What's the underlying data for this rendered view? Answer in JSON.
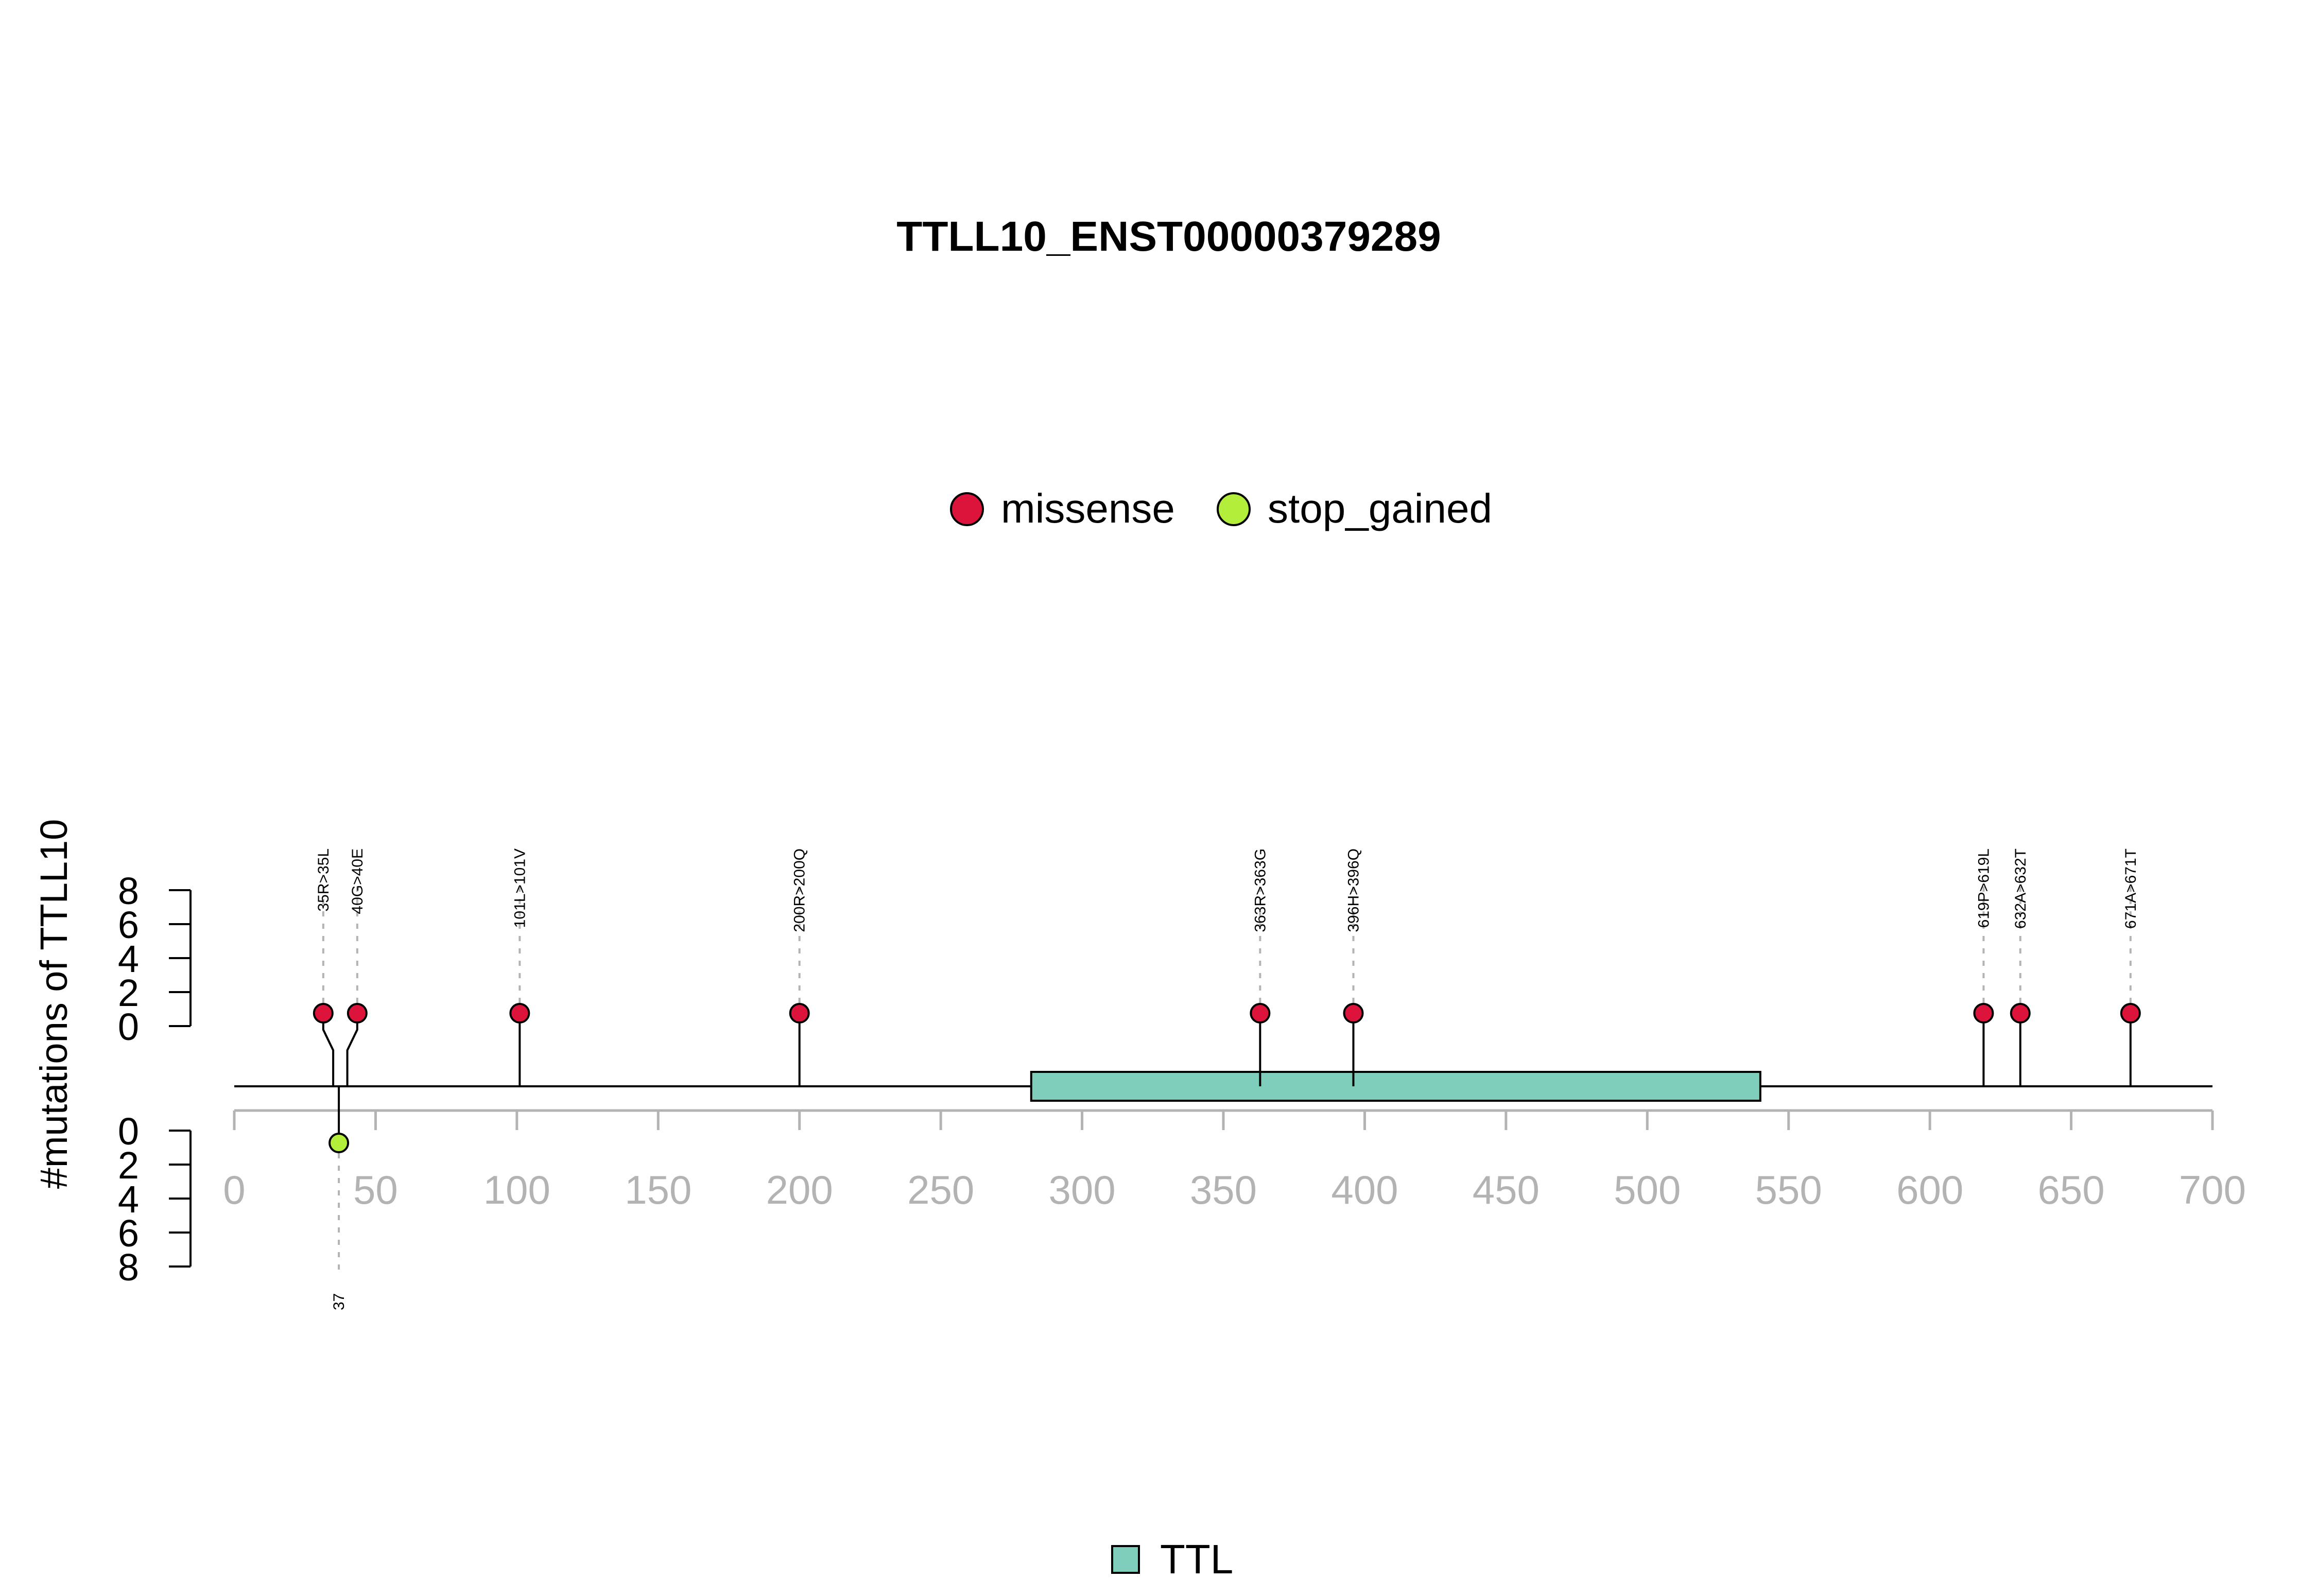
{
  "chart_data": {
    "type": "lollipop",
    "title": "TTLL10_ENST00000379289",
    "ylabel": "#mutations of TTLL10",
    "xlim": [
      0,
      700
    ],
    "x_ticks": [
      0,
      50,
      100,
      150,
      200,
      250,
      300,
      350,
      400,
      450,
      500,
      550,
      600,
      650,
      700
    ],
    "y_ticks_top": [
      0,
      2,
      4,
      6,
      8
    ],
    "y_ticks_bottom": [
      0,
      2,
      4,
      6,
      8
    ],
    "ylim": [
      0,
      8
    ],
    "colors": {
      "missense": "#DC143C",
      "stop_gained": "#B3EE3A",
      "domain": "#7FCDBB",
      "axis_ticks": "#b3b3b3",
      "guide": "#b3b3b3"
    },
    "legend": {
      "placement": "top",
      "items": [
        {
          "label": "missense",
          "color": "#DC143C"
        },
        {
          "label": "stop_gained",
          "color": "#B3EE3A"
        }
      ]
    },
    "domain_legend": {
      "placement": "bottom",
      "items": [
        {
          "label": "TTL",
          "color": "#7FCDBB"
        }
      ]
    },
    "domains": [
      {
        "name": "TTL",
        "start": 282,
        "end": 540
      }
    ],
    "mutations_top": [
      {
        "position": 35,
        "label": "35R>35L",
        "type": "missense",
        "count": 1
      },
      {
        "position": 40,
        "label": "40G>40E",
        "type": "missense",
        "count": 1
      },
      {
        "position": 101,
        "label": "101L>101V",
        "type": "missense",
        "count": 1
      },
      {
        "position": 200,
        "label": "200R>200Q",
        "type": "missense",
        "count": 1
      },
      {
        "position": 363,
        "label": "363R>363G",
        "type": "missense",
        "count": 1
      },
      {
        "position": 396,
        "label": "396H>396Q",
        "type": "missense",
        "count": 1
      },
      {
        "position": 619,
        "label": "619P>619L",
        "type": "missense",
        "count": 1
      },
      {
        "position": 632,
        "label": "632A>632T",
        "type": "missense",
        "count": 1
      },
      {
        "position": 671,
        "label": "671A>671T",
        "type": "missense",
        "count": 1
      }
    ],
    "mutations_bottom": [
      {
        "position": 37,
        "label": "37",
        "type": "stop_gained",
        "count": 1
      }
    ]
  }
}
